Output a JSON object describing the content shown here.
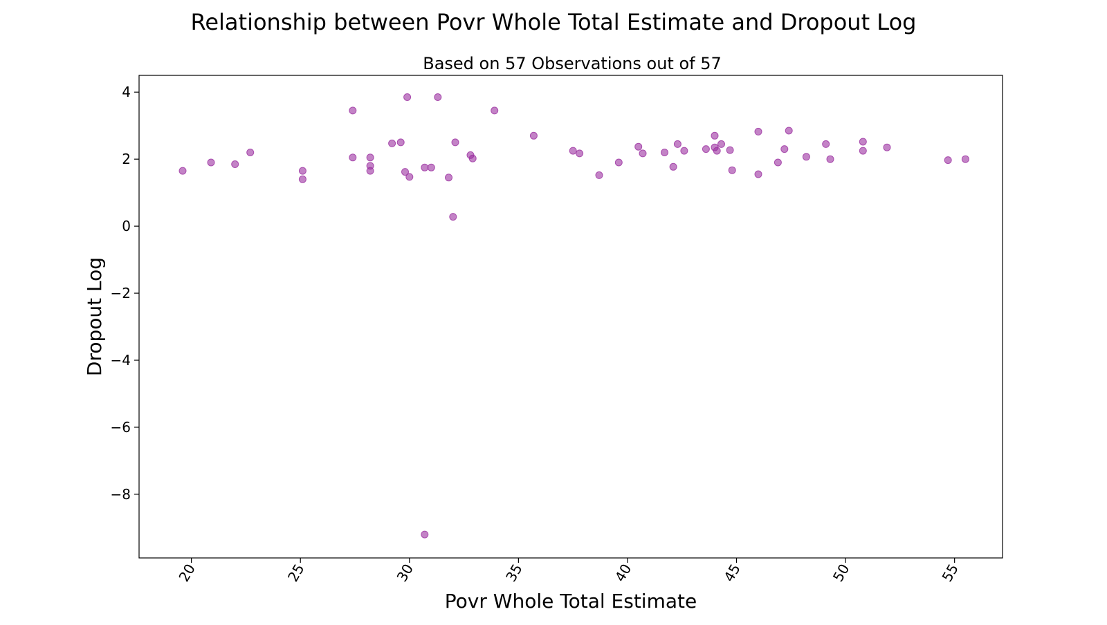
{
  "chart_data": {
    "type": "scatter",
    "title": "Relationship between Povr Whole Total Estimate and Dropout Log",
    "subtitle": "Based on 57 Observations out of 57",
    "xlabel": "Povr Whole Total Estimate",
    "ylabel": "Dropout Log",
    "xlim": [
      17.6,
      57.2
    ],
    "ylim": [
      -9.9,
      4.5
    ],
    "xticks": [
      20,
      25,
      30,
      35,
      40,
      45,
      50,
      55
    ],
    "yticks": [
      4,
      2,
      0,
      -2,
      -4,
      -6,
      -8
    ],
    "ytick_labels": [
      "4",
      "2",
      "0",
      "−2",
      "−4",
      "−6",
      "−8"
    ],
    "grid": false,
    "marker_color": "#9b30a0",
    "x": [
      19.6,
      20.9,
      22.0,
      22.7,
      25.1,
      25.1,
      27.4,
      27.4,
      28.2,
      28.2,
      28.2,
      29.2,
      29.6,
      29.8,
      29.9,
      30.0,
      30.7,
      30.7,
      31.0,
      31.3,
      31.8,
      32.0,
      32.1,
      32.8,
      32.9,
      33.9,
      35.7,
      37.5,
      37.8,
      38.7,
      39.6,
      40.5,
      40.7,
      41.7,
      42.1,
      42.3,
      42.6,
      43.6,
      44.0,
      44.0,
      44.1,
      44.3,
      44.7,
      44.8,
      46.0,
      46.0,
      46.9,
      47.2,
      47.4,
      48.2,
      49.1,
      49.3,
      50.8,
      50.8,
      51.9,
      54.7,
      55.5
    ],
    "y": [
      1.65,
      1.9,
      1.85,
      2.2,
      1.65,
      1.4,
      3.45,
      2.05,
      2.05,
      1.8,
      1.65,
      2.47,
      2.5,
      1.62,
      3.85,
      1.47,
      1.75,
      -9.2,
      1.75,
      3.85,
      1.45,
      0.28,
      2.5,
      2.12,
      2.02,
      3.45,
      2.7,
      2.25,
      2.17,
      1.52,
      1.9,
      2.37,
      2.17,
      2.2,
      1.77,
      2.45,
      2.25,
      2.3,
      2.7,
      2.35,
      2.25,
      2.45,
      2.27,
      1.67,
      2.82,
      1.55,
      1.9,
      2.3,
      2.85,
      2.07,
      2.45,
      2.0,
      2.52,
      2.25,
      2.35,
      1.97,
      2.0
    ]
  }
}
